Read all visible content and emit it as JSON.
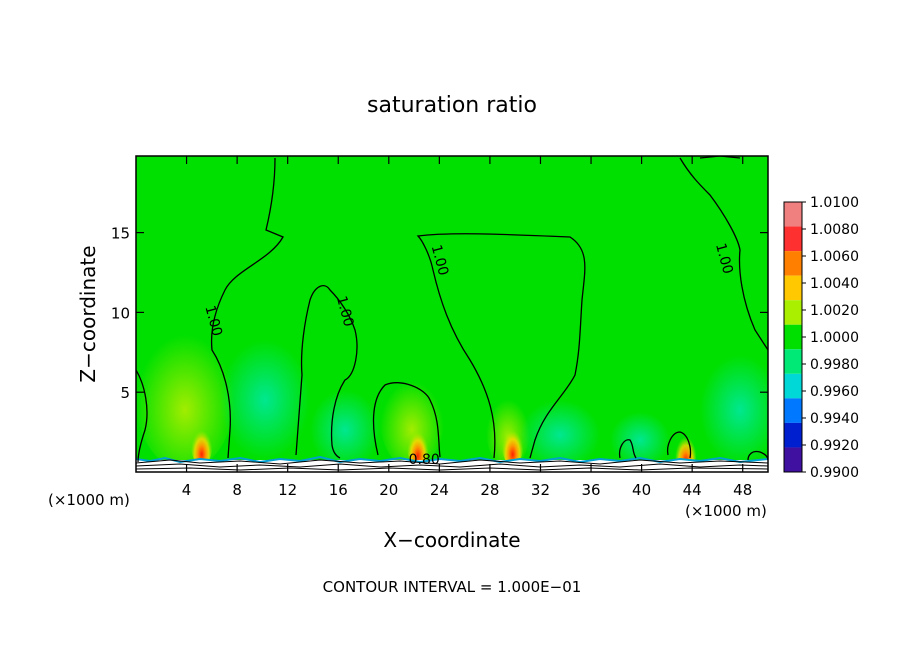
{
  "chart_data": {
    "type": "heatmap",
    "title": "saturation ratio",
    "xlabel": "X−coordinate",
    "ylabel": "Z−coordinate",
    "x_unit_left": "(×1000 m)",
    "x_unit_right": "(×1000 m)",
    "xlim": [
      0,
      50
    ],
    "ylim": [
      0,
      19.8
    ],
    "x_ticks": [
      4,
      8,
      12,
      16,
      20,
      24,
      28,
      32,
      36,
      40,
      44,
      48
    ],
    "y_ticks": [
      5,
      10,
      15
    ],
    "footer": "CONTOUR INTERVAL = 1.000E−01",
    "contour_labels": [
      {
        "text": "1.00",
        "x": 5.8,
        "y": 9.4
      },
      {
        "text": "1.00",
        "x": 16.2,
        "y": 10.0
      },
      {
        "text": "1.00",
        "x": 23.7,
        "y": 13.2
      },
      {
        "text": "1.00",
        "x": 46.2,
        "y": 13.3
      },
      {
        "text": "0.80",
        "x": 22.8,
        "y": 0.5
      }
    ],
    "colorbar": {
      "levels": [
        "1.0100",
        "1.0080",
        "1.0060",
        "1.0040",
        "1.0020",
        "1.0000",
        "0.9980",
        "0.9960",
        "0.9940",
        "0.9920",
        "0.9900"
      ],
      "colors": [
        "#f08080",
        "#ff3030",
        "#ff8000",
        "#ffc800",
        "#aaee00",
        "#00e000",
        "#00e876",
        "#00d8d8",
        "#0078ff",
        "#0020d0",
        "#4010a0"
      ]
    },
    "background_color": "#00e000",
    "hotspots": [
      {
        "x": 5.2,
        "y": 1.6,
        "value": 1.007
      },
      {
        "x": 22.3,
        "y": 1.5,
        "value": 1.005
      },
      {
        "x": 29.8,
        "y": 1.6,
        "value": 1.0065
      },
      {
        "x": 43.5,
        "y": 1.2,
        "value": 1.004
      }
    ]
  }
}
